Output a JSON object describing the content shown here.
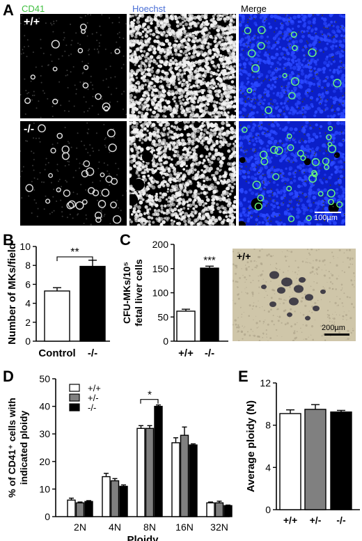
{
  "panel_a": {
    "label": "A",
    "columns": [
      "CD41",
      "Hoechst",
      "Merge"
    ],
    "column_colors": [
      "#3fbf3f",
      "#4a6fd6",
      "#000000"
    ],
    "rows": [
      "+/+",
      "-/-"
    ],
    "scale_bar": "100µm"
  },
  "panel_c_image": {
    "genotype": "+/+",
    "scale_bar": "200µm"
  },
  "chart_data": [
    {
      "panel": "B",
      "type": "bar",
      "categories": [
        "Control",
        "-/-"
      ],
      "values": [
        5.3,
        7.9
      ],
      "errors": [
        0.35,
        0.65
      ],
      "fill": [
        "#ffffff",
        "#000000"
      ],
      "ylabel": "Number of MKs/field",
      "ylim": [
        0,
        10
      ],
      "yticks": [
        "0",
        "2",
        "4",
        "6",
        "8",
        "10"
      ],
      "significance": "**"
    },
    {
      "panel": "C",
      "type": "bar",
      "categories": [
        "+/+",
        "-/-"
      ],
      "values": [
        62,
        151
      ],
      "errors": [
        4,
        4
      ],
      "fill": [
        "#ffffff",
        "#000000"
      ],
      "ylabel_lines": [
        "CFU-MKs/10⁵",
        "fetal liver cells"
      ],
      "ylim": [
        0,
        200
      ],
      "yticks": [
        "0",
        "50",
        "100",
        "150",
        "200"
      ],
      "significance": "***"
    },
    {
      "panel": "D",
      "type": "bar",
      "categories": [
        "2N",
        "4N",
        "8N",
        "16N",
        "32N"
      ],
      "series": [
        {
          "name": "+/+",
          "color": "#ffffff",
          "values": [
            6.0,
            14.5,
            32.0,
            26.8,
            5.0
          ],
          "errors": [
            0.7,
            1.2,
            1.0,
            1.8,
            0.3
          ]
        },
        {
          "name": "+/-",
          "color": "#808080",
          "values": [
            5.0,
            13.0,
            32.0,
            29.5,
            5.0
          ],
          "errors": [
            0.3,
            0.8,
            1.0,
            3.0,
            0.6
          ]
        },
        {
          "name": "-/-",
          "color": "#000000",
          "values": [
            5.5,
            11.0,
            40.0,
            26.0,
            4.0
          ],
          "errors": [
            0.3,
            0.5,
            0.5,
            0.4,
            0.2
          ]
        }
      ],
      "xlabel": "Ploidy",
      "ylabel_lines": [
        "% of CD41⁺ cells with",
        "indicated ploidy"
      ],
      "ylim": [
        0,
        50
      ],
      "yticks": [
        "0",
        "10",
        "20",
        "30",
        "40",
        "50"
      ],
      "significance": "*"
    },
    {
      "panel": "E",
      "type": "bar",
      "categories": [
        "+/+",
        "+/-",
        "-/-"
      ],
      "values": [
        9.1,
        9.5,
        9.25
      ],
      "errors": [
        0.35,
        0.45,
        0.15
      ],
      "fill": [
        "#ffffff",
        "#808080",
        "#000000"
      ],
      "ylabel": "Average ploidy (N)",
      "ylim": [
        0,
        12
      ],
      "yticks": [
        "0",
        "4",
        "8",
        "12"
      ]
    }
  ],
  "panel_letters": {
    "b": "B",
    "c": "C",
    "d": "D",
    "e": "E"
  }
}
